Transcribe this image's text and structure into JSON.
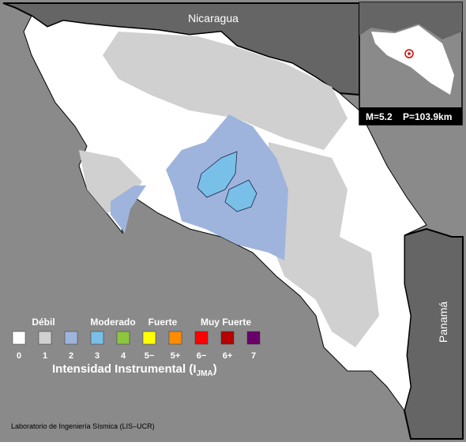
{
  "map": {
    "labels": {
      "nicaragua": "Nicaragua",
      "panama": "Panamá"
    },
    "inset": {
      "magnitude": "M=5.2",
      "depth": "P=103.9km"
    },
    "legend": {
      "groups": [
        "Débil",
        "Moderado",
        "Fuerte",
        "Muy Fuerte"
      ],
      "classes": [
        {
          "label": "0",
          "color": "#ffffff"
        },
        {
          "label": "1",
          "color": "#d0d0d0"
        },
        {
          "label": "2",
          "color": "#9fb4dc"
        },
        {
          "label": "3",
          "color": "#78c0e8"
        },
        {
          "label": "4",
          "color": "#8cc63f"
        },
        {
          "label": "5−",
          "color": "#ffff00"
        },
        {
          "label": "5+",
          "color": "#ff8c00"
        },
        {
          "label": "6−",
          "color": "#ff0000"
        },
        {
          "label": "6+",
          "color": "#b40000"
        },
        {
          "label": "7",
          "color": "#6a006a"
        }
      ],
      "title": "Intensidad Instrumental (I",
      "title_sub": "JMA",
      "title_end": ")"
    },
    "credit": "Laboratorio de Ingeniería Sísmica (LIS–UCR)"
  }
}
